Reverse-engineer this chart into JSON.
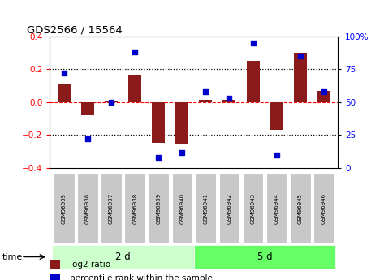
{
  "title": "GDS2566 / 15564",
  "samples": [
    "GSM96935",
    "GSM96936",
    "GSM96937",
    "GSM96938",
    "GSM96939",
    "GSM96940",
    "GSM96941",
    "GSM96942",
    "GSM96943",
    "GSM96944",
    "GSM96945",
    "GSM96946"
  ],
  "log2_ratio": [
    0.115,
    -0.08,
    0.005,
    0.165,
    -0.245,
    -0.255,
    0.015,
    0.015,
    0.25,
    -0.17,
    0.3,
    0.07
  ],
  "percentile_rank": [
    72,
    22,
    50,
    88,
    8,
    12,
    58,
    53,
    95,
    10,
    85,
    58
  ],
  "group1_label": "2 d",
  "group2_label": "5 d",
  "group1_count": 6,
  "group2_count": 6,
  "bar_color": "#8B1A1A",
  "dot_color": "#0000CC",
  "ylim": [
    -0.4,
    0.4
  ],
  "yticks_left": [
    -0.4,
    -0.2,
    0.0,
    0.2,
    0.4
  ],
  "yticks_right": [
    0,
    25,
    50,
    75,
    100
  ],
  "hline_dotted": [
    0.2,
    -0.2
  ],
  "hline_dashed": [
    0.0
  ],
  "group1_color": "#ccffcc",
  "group2_color": "#66ff66",
  "tick_box_color": "#c8c8c8",
  "legend_red_label": "log2 ratio",
  "legend_blue_label": "percentile rank within the sample",
  "time_label": "time"
}
